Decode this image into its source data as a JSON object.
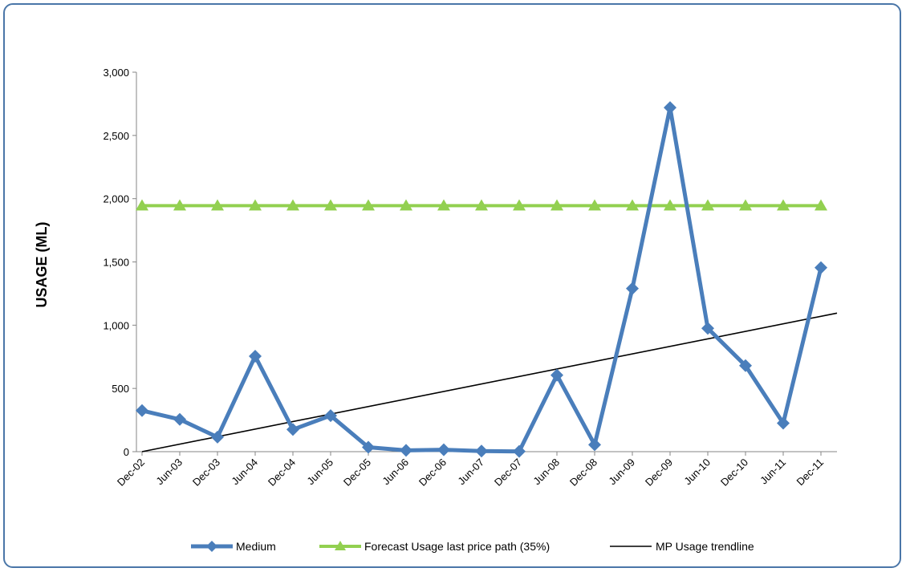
{
  "chart_data": {
    "type": "line",
    "title": "",
    "xlabel": "",
    "ylabel": "USAGE (ML)",
    "ylim": [
      0,
      3000
    ],
    "yticks": [
      0,
      500,
      1000,
      1500,
      2000,
      2500,
      3000
    ],
    "ytick_labels": [
      "0",
      "500",
      "1,000",
      "1,500",
      "2,000",
      "2,500",
      "3,000"
    ],
    "categories": [
      "Dec-02",
      "Jun-03",
      "Dec-03",
      "Jun-04",
      "Dec-04",
      "Jun-05",
      "Dec-05",
      "Jun-06",
      "Dec-06",
      "Jun-07",
      "Dec-07",
      "Jun-08",
      "Dec-08",
      "Jun-09",
      "Dec-09",
      "Jun-10",
      "Dec-10",
      "Jun-11",
      "Dec-11"
    ],
    "series": [
      {
        "name": "Medium",
        "marker": "diamond",
        "color": "#4a7ebb",
        "values": [
          325,
          255,
          115,
          755,
          175,
          285,
          35,
          10,
          15,
          5,
          2,
          605,
          55,
          1290,
          2720,
          975,
          680,
          225,
          1455
        ]
      },
      {
        "name": "Forecast Usage last price path (35%)",
        "marker": "triangle",
        "color": "#92d050",
        "values": [
          1945,
          1945,
          1945,
          1945,
          1945,
          1945,
          1945,
          1945,
          1945,
          1945,
          1945,
          1945,
          1945,
          1945,
          1945,
          1945,
          1945,
          1945,
          1945
        ]
      },
      {
        "name": "MP Usage trendline",
        "marker": "none",
        "color": "#000000",
        "type": "trendline",
        "start": 0,
        "end": 1070
      }
    ],
    "grid": false,
    "legend_position": "bottom"
  }
}
